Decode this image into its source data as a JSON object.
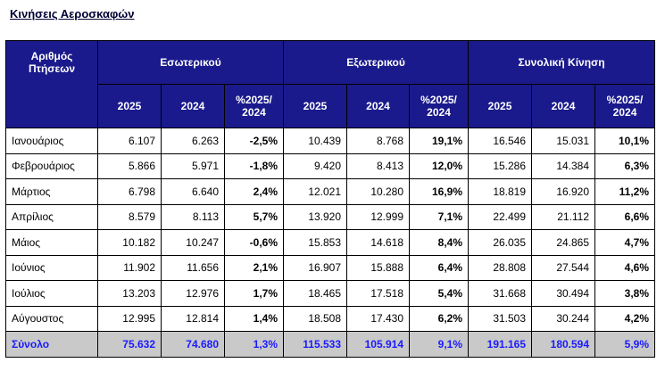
{
  "title": "Κινήσεις Αεροσκαφών",
  "header": {
    "corner": "Αριθμός Πτήσεων",
    "groups": [
      "Εσωτερικού",
      "Εξωτερικού",
      "Συνολική Κίνηση"
    ],
    "sub": [
      "2025",
      "2024",
      "%2025/ 2024",
      "2025",
      "2024",
      "%2025/ 2024",
      "2025",
      "2024",
      "%2025/ 2024"
    ]
  },
  "rows": [
    [
      "Ιανουάριος",
      "6.107",
      "6.263",
      "-2,5%",
      "10.439",
      "8.768",
      "19,1%",
      "16.546",
      "15.031",
      "10,1%"
    ],
    [
      "Φεβρουάριος",
      "5.866",
      "5.971",
      "-1,8%",
      "9.420",
      "8.413",
      "12,0%",
      "15.286",
      "14.384",
      "6,3%"
    ],
    [
      "Μάρτιος",
      "6.798",
      "6.640",
      "2,4%",
      "12.021",
      "10.280",
      "16,9%",
      "18.819",
      "16.920",
      "11,2%"
    ],
    [
      "Απρίλιος",
      "8.579",
      "8.113",
      "5,7%",
      "13.920",
      "12.999",
      "7,1%",
      "22.499",
      "21.112",
      "6,6%"
    ],
    [
      "Μάιος",
      "10.182",
      "10.247",
      "-0,6%",
      "15.853",
      "14.618",
      "8,4%",
      "26.035",
      "24.865",
      "4,7%"
    ],
    [
      "Ιούνιος",
      "11.902",
      "11.656",
      "2,1%",
      "16.907",
      "15.888",
      "6,4%",
      "28.808",
      "27.544",
      "4,6%"
    ],
    [
      "Ιούλιος",
      "13.203",
      "12.976",
      "1,7%",
      "18.465",
      "17.518",
      "5,4%",
      "31.668",
      "30.494",
      "3,8%"
    ],
    [
      "Αύγουστος",
      "12.995",
      "12.814",
      "1,4%",
      "18.508",
      "17.430",
      "6,2%",
      "31.503",
      "30.244",
      "4,2%"
    ]
  ],
  "total": [
    "Σύνολο",
    "75.632",
    "74.680",
    "1,3%",
    "115.533",
    "105.914",
    "9,1%",
    "191.165",
    "180.594",
    "5,9%"
  ]
}
